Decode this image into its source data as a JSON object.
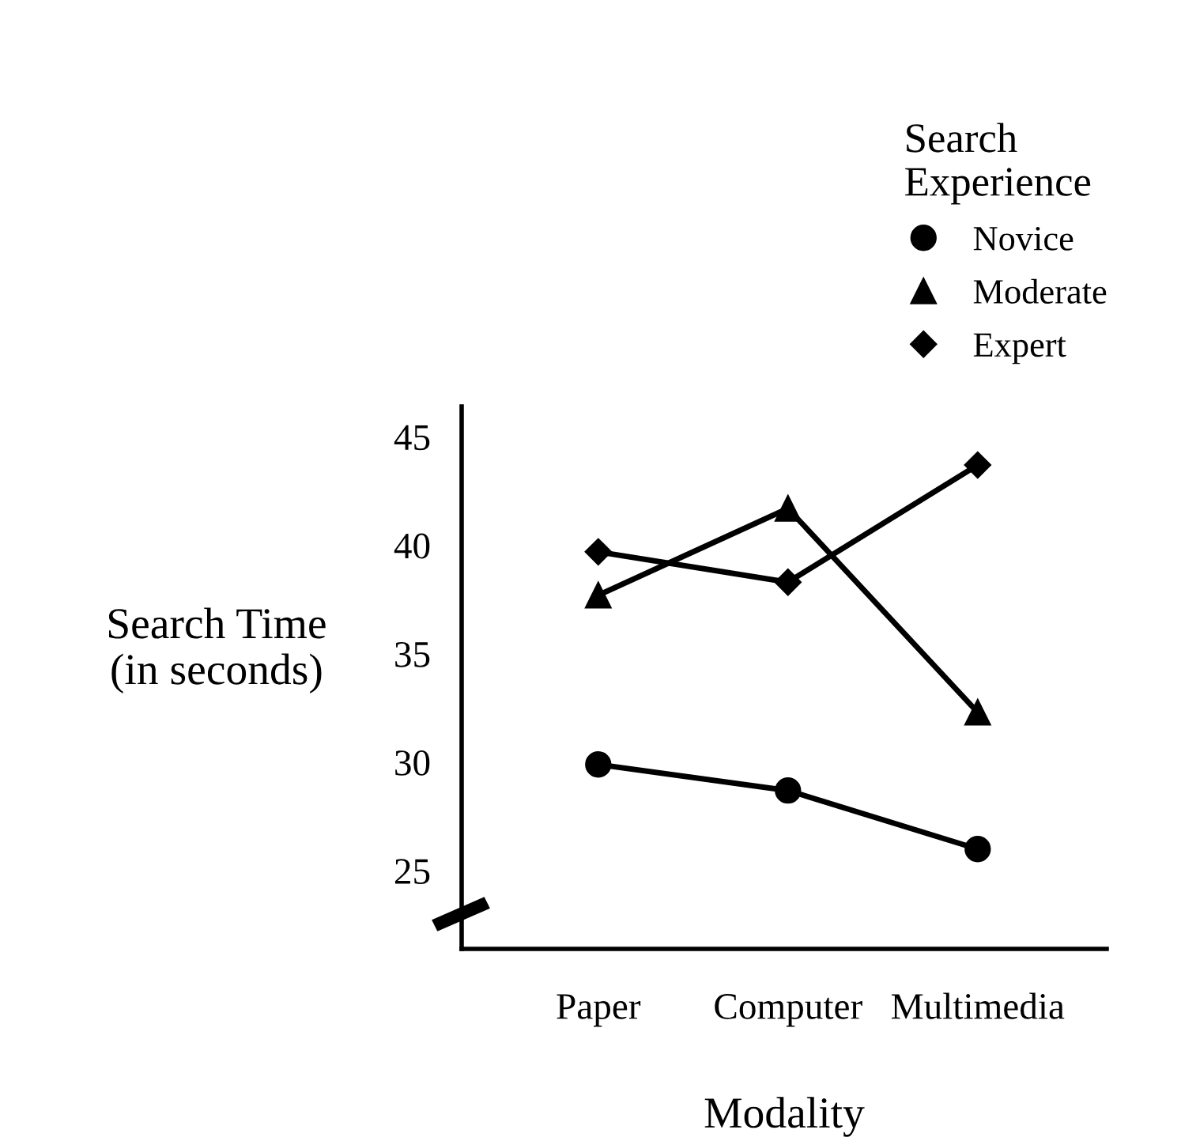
{
  "chart_data": {
    "type": "line",
    "categories": [
      "Paper",
      "Computer",
      "Multimedia"
    ],
    "series": [
      {
        "name": "Novice",
        "color": "#000000",
        "marker": "circle",
        "values": [
          29.9,
          28.7,
          26.0
        ]
      },
      {
        "name": "Moderate",
        "color": "#000000",
        "marker": "triangle",
        "values": [
          37.7,
          41.7,
          32.3
        ]
      },
      {
        "name": "Expert",
        "color": "#000000",
        "marker": "diamond",
        "values": [
          39.7,
          38.3,
          43.7
        ]
      }
    ],
    "xlabel": "Modality",
    "ylabel": "Search Time\n(in seconds)",
    "legend_title": "Search\nExperience",
    "ylim": [
      21.4,
      46.4
    ],
    "yticks": [
      25,
      30,
      35,
      40,
      45
    ],
    "legend": "top right",
    "grid": false,
    "line_style": "solid"
  }
}
